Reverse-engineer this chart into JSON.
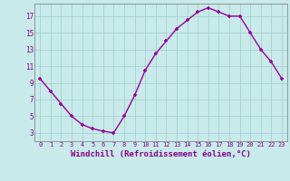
{
  "x": [
    0,
    1,
    2,
    3,
    4,
    5,
    6,
    7,
    8,
    9,
    10,
    11,
    12,
    13,
    14,
    15,
    16,
    17,
    18,
    19,
    20,
    21,
    22,
    23
  ],
  "y": [
    9.5,
    8.0,
    6.5,
    5.0,
    4.0,
    3.5,
    3.2,
    3.0,
    5.0,
    7.5,
    10.5,
    12.5,
    14.0,
    15.5,
    16.5,
    17.5,
    18.0,
    17.5,
    17.0,
    17.0,
    15.0,
    13.0,
    11.5,
    9.5
  ],
  "line_color": "#990099",
  "marker": "+",
  "marker_size": 3,
  "background_color": "#c8eaea",
  "grid_color": "#a0cccc",
  "xlabel": "Windchill (Refroidissement éolien,°C)",
  "xlabel_fontsize": 6.5,
  "tick_label_color": "#880088",
  "axis_label_color": "#880088",
  "xlim": [
    -0.5,
    23.5
  ],
  "ylim": [
    2.0,
    18.5
  ],
  "yticks": [
    3,
    5,
    7,
    9,
    11,
    13,
    15,
    17
  ],
  "xticks": [
    0,
    1,
    2,
    3,
    4,
    5,
    6,
    7,
    8,
    9,
    10,
    11,
    12,
    13,
    14,
    15,
    16,
    17,
    18,
    19,
    20,
    21,
    22,
    23
  ]
}
